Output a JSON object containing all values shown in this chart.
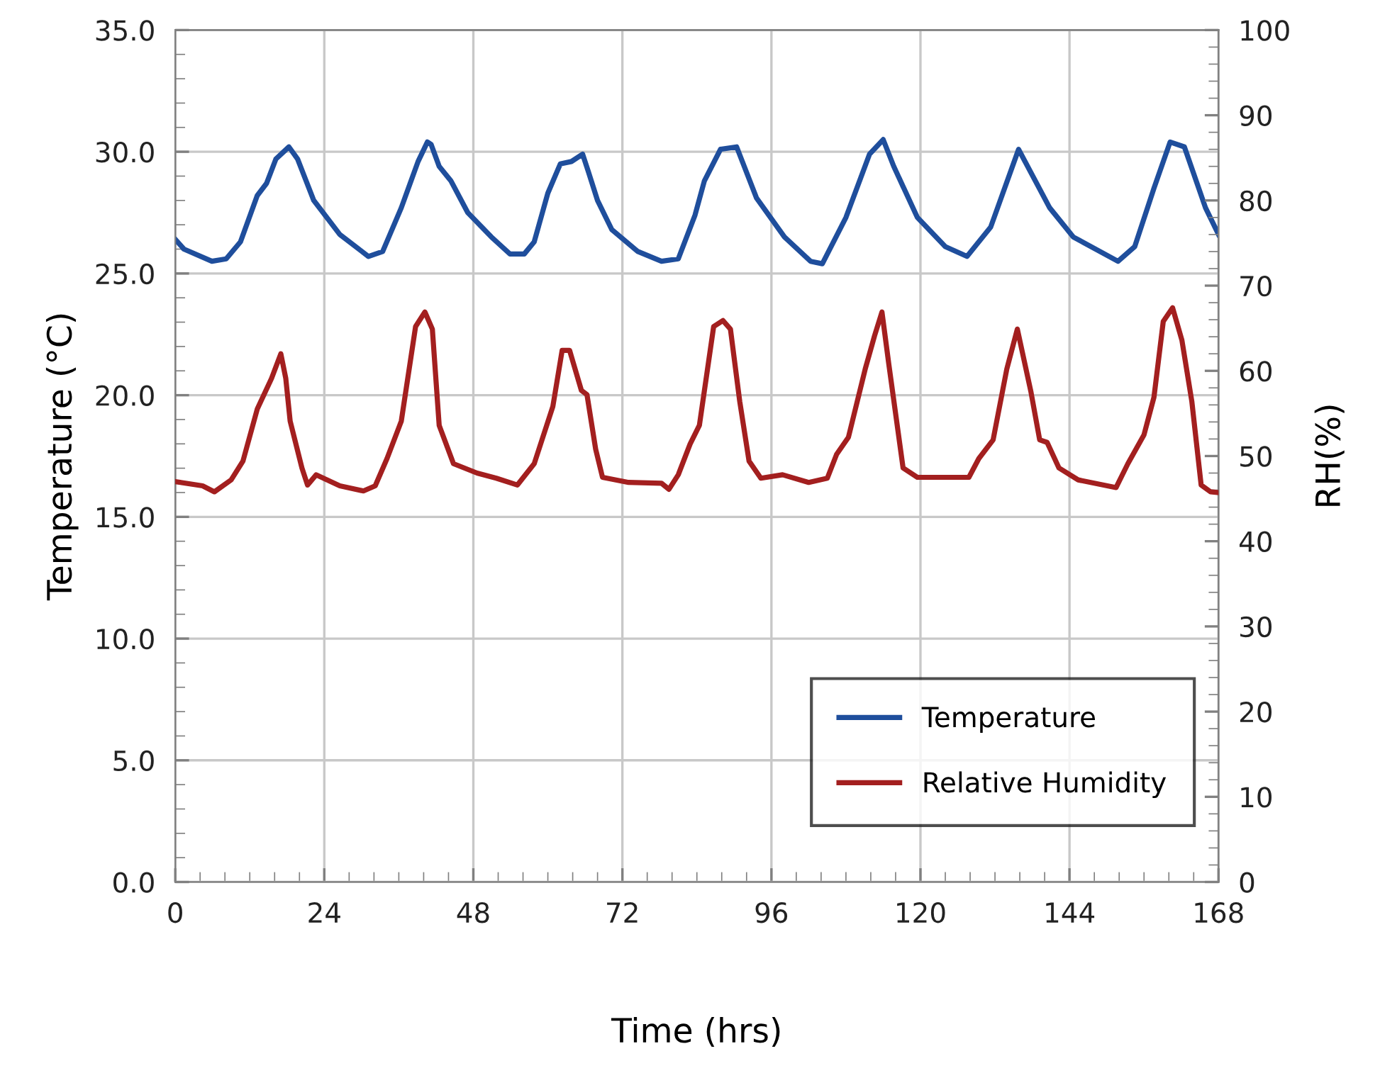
{
  "chart_data": {
    "type": "line",
    "xlabel": "Time (hrs)",
    "ylabel": "Temperature (°C)",
    "y2label": "RH(%)",
    "xlim": [
      0,
      168
    ],
    "xticks": [
      0,
      24,
      48,
      72,
      96,
      120,
      144,
      168
    ],
    "ylim": [
      0,
      35
    ],
    "yticks": [
      {
        "value": 0,
        "label": "0.0"
      },
      {
        "value": 5,
        "label": "5.0"
      },
      {
        "value": 10,
        "label": "10.0"
      },
      {
        "value": 15,
        "label": "15.0"
      },
      {
        "value": 20,
        "label": "20.0"
      },
      {
        "value": 25,
        "label": "25.0"
      },
      {
        "value": 30,
        "label": "30.0"
      },
      {
        "value": 35,
        "label": "35.0"
      }
    ],
    "y2lim": [
      0,
      100
    ],
    "y2ticks": [
      0,
      10,
      20,
      30,
      40,
      50,
      60,
      70,
      80,
      90,
      100
    ],
    "grid": true,
    "legend": "bottom right",
    "marker": "none",
    "line_style": "solid",
    "series": [
      {
        "name": "Temperature",
        "color": "#1f4e9c",
        "x": [
          0,
          1.4,
          5.9,
          8.2,
          10.5,
          13.2,
          14.7,
          16.2,
          18.3,
          19.7,
          22.3,
          26.5,
          31.1,
          33.4,
          36.4,
          39.1,
          40.6,
          41.2,
          42.5,
          44.4,
          47.1,
          50.9,
          53.9,
          56.2,
          57.8,
          60.0,
          62.0,
          63.8,
          65.6,
          66.5,
          68.0,
          70.3,
          74.5,
          78.3,
          81.0,
          83.7,
          85.2,
          87.8,
          90.4,
          93.6,
          98.1,
          102.3,
          104.2,
          108.0,
          111.8,
          114.0,
          115.7,
          119.5,
          124.0,
          127.5,
          131.3,
          135.8,
          140.8,
          144.6,
          151.8,
          154.5,
          157.6,
          160.2,
          162.5,
          165.9,
          168
        ],
        "values": [
          26.4,
          26.0,
          25.5,
          25.6,
          26.3,
          28.2,
          28.7,
          29.7,
          30.2,
          29.7,
          28.0,
          26.6,
          25.7,
          25.9,
          27.7,
          29.6,
          30.4,
          30.3,
          29.4,
          28.8,
          27.5,
          26.5,
          25.8,
          25.8,
          26.3,
          28.3,
          29.5,
          29.6,
          29.9,
          29.2,
          28.0,
          26.8,
          25.9,
          25.5,
          25.6,
          27.4,
          28.8,
          30.1,
          30.2,
          28.1,
          26.5,
          25.5,
          25.4,
          27.3,
          29.9,
          30.5,
          29.4,
          27.3,
          26.1,
          25.7,
          26.9,
          30.1,
          27.7,
          26.5,
          25.5,
          26.1,
          28.5,
          30.4,
          30.2,
          27.7,
          26.6
        ]
      },
      {
        "name": "Relative Humidity",
        "color": "#a31f1f",
        "axis": "y2",
        "x": [
          0,
          4.4,
          6.3,
          9.0,
          10.9,
          13.2,
          15.5,
          17.0,
          17.8,
          18.5,
          20.4,
          21.3,
          22.7,
          26.5,
          30.3,
          32.2,
          34.1,
          36.4,
          38.7,
          40.2,
          41.4,
          42.5,
          44.8,
          48.6,
          51.7,
          55.1,
          57.8,
          60.8,
          62.3,
          63.5,
          65.4,
          66.3,
          67.7,
          68.8,
          73.0,
          78.3,
          79.5,
          81.0,
          82.9,
          84.4,
          86.7,
          88.2,
          89.4,
          90.9,
          92.4,
          94.3,
          97.8,
          102.0,
          105.0,
          106.5,
          108.4,
          111.1,
          112.6,
          113.8,
          114.9,
          117.2,
          119.5,
          124.0,
          127.8,
          129.4,
          131.7,
          133.9,
          135.6,
          137.8,
          139.2,
          140.4,
          142.3,
          145.4,
          151.5,
          153.4,
          156.0,
          157.6,
          159.1,
          160.6,
          162.1,
          163.7,
          165.2,
          166.7,
          168
        ],
        "values": [
          47.0,
          46.5,
          45.8,
          47.2,
          49.4,
          55.5,
          59.1,
          62.0,
          59.1,
          54.1,
          48.6,
          46.6,
          47.8,
          46.5,
          45.9,
          46.5,
          49.7,
          54.1,
          65.2,
          66.9,
          64.9,
          53.6,
          49.1,
          48.0,
          47.4,
          46.6,
          49.1,
          55.8,
          62.4,
          62.4,
          57.7,
          57.2,
          50.8,
          47.5,
          46.9,
          46.8,
          46.1,
          47.8,
          51.4,
          53.6,
          65.2,
          65.9,
          64.9,
          56.4,
          49.4,
          47.4,
          47.8,
          46.9,
          47.4,
          50.2,
          52.2,
          60.2,
          64.1,
          66.9,
          60.8,
          48.6,
          47.5,
          47.5,
          47.5,
          49.7,
          51.9,
          60.2,
          64.9,
          57.5,
          51.9,
          51.6,
          48.6,
          47.2,
          46.3,
          49.1,
          52.5,
          56.9,
          65.8,
          67.4,
          63.6,
          56.4,
          46.6,
          45.8,
          45.7
        ]
      }
    ]
  }
}
